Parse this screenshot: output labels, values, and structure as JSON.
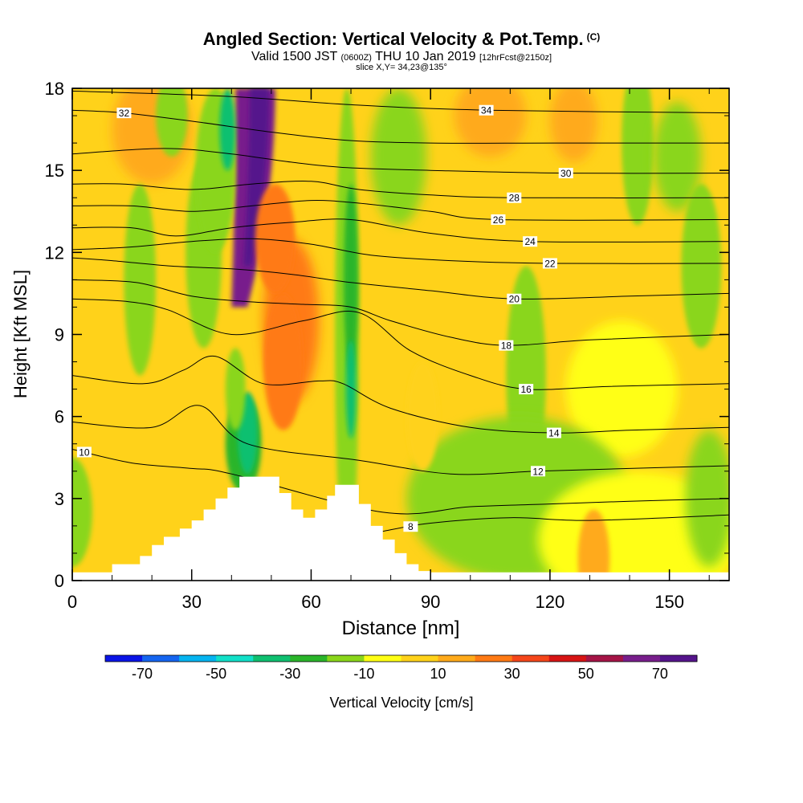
{
  "header": {
    "title": "Angled Section: Vertical Velocity & Pot.Temp.",
    "title_suffix": "(C)",
    "valid_prefix": "Valid 1500 JST",
    "valid_utc": "(0600Z)",
    "valid_date": "THU 10 Jan 2019",
    "forecast": "[12hrFcst@2150z]",
    "slice": "slice X,Y= 34,23@135°"
  },
  "chart_data": {
    "type": "heatmap",
    "xlabel": "Distance [nm]",
    "ylabel": "Height [Kft MSL]",
    "xlim": [
      0,
      165
    ],
    "ylim": [
      0,
      18
    ],
    "x_ticks": [
      0,
      30,
      60,
      90,
      120,
      150
    ],
    "y_ticks": [
      0,
      3,
      6,
      9,
      12,
      15,
      18
    ],
    "colorbar": {
      "label": "Vertical Velocity [cm/s]",
      "boundaries": [
        -80,
        -70,
        -60,
        -50,
        -40,
        -30,
        -20,
        -10,
        0,
        10,
        20,
        30,
        40,
        50,
        60,
        70,
        80
      ],
      "tick_labels": [
        "-70",
        "-50",
        "-30",
        "-10",
        "10",
        "30",
        "50",
        "70"
      ],
      "tick_values": [
        -70,
        -50,
        -30,
        -10,
        10,
        30,
        50,
        70
      ],
      "colors": [
        "#0a14e6",
        "#1565f0",
        "#05b4f0",
        "#12e0c8",
        "#0fc070",
        "#2ab52a",
        "#8ad61a",
        "#ffff14",
        "#ffd21a",
        "#ffaa1a",
        "#ff7a14",
        "#f5461a",
        "#d71414",
        "#a51446",
        "#781e8c",
        "#55148c"
      ]
    },
    "terrain_profile_kft": {
      "x": [
        0,
        10,
        17,
        20,
        23,
        27,
        30,
        33,
        36,
        39,
        42,
        45,
        47,
        50,
        52,
        55,
        58,
        61,
        64,
        66,
        67,
        69,
        72,
        75,
        78,
        81,
        84,
        87,
        90,
        165
      ],
      "top": [
        0.3,
        0.6,
        0.9,
        1.3,
        1.6,
        1.9,
        2.2,
        2.6,
        3.0,
        3.4,
        3.8,
        3.8,
        3.8,
        3.8,
        3.2,
        2.6,
        2.3,
        2.6,
        3.1,
        3.5,
        3.5,
        3.5,
        2.8,
        2.0,
        1.5,
        1.0,
        0.6,
        0.35,
        0.3,
        0.3
      ]
    },
    "velocity_features": [
      {
        "shape": "plume",
        "x": 46,
        "y_bottom": 10,
        "y_top": 18,
        "x_base_offset": -4,
        "half_width": 5,
        "value": 65
      },
      {
        "shape": "plume",
        "x": 47,
        "y_bottom": 11.5,
        "y_top": 18,
        "x_base_offset": -3,
        "half_width": 2.4,
        "value": 75
      },
      {
        "shape": "blob",
        "x": 55,
        "y": 9.5,
        "rx": 7,
        "ry": 3,
        "value": 25
      },
      {
        "shape": "blob",
        "x": 53,
        "y": 8,
        "rx": 5,
        "ry": 2.5,
        "value": 22
      },
      {
        "shape": "blob",
        "x": 51,
        "y": 12.5,
        "rx": 5,
        "ry": 2,
        "value": 20
      },
      {
        "shape": "blob",
        "x": 20,
        "y": 16.5,
        "rx": 10,
        "ry": 2,
        "value": 18
      },
      {
        "shape": "blob",
        "x": 105,
        "y": 17,
        "rx": 9,
        "ry": 1.5,
        "value": 18
      },
      {
        "shape": "blob",
        "x": 126,
        "y": 16.8,
        "rx": 6,
        "ry": 1.5,
        "value": 12
      },
      {
        "shape": "blob",
        "x": 33,
        "y": 12,
        "rx": 4.5,
        "ry": 3.5,
        "value": -15
      },
      {
        "shape": "blob",
        "x": 36,
        "y": 15,
        "rx": 5,
        "ry": 3,
        "value": -18
      },
      {
        "shape": "blob",
        "x": 39,
        "y": 16.5,
        "rx": 2,
        "ry": 1.5,
        "value": -32
      },
      {
        "shape": "blob",
        "x": 25,
        "y": 17,
        "rx": 4,
        "ry": 1.5,
        "value": -12
      },
      {
        "shape": "blob",
        "x": 43,
        "y": 5,
        "rx": 4.5,
        "ry": 1.8,
        "value": -22
      },
      {
        "shape": "blob",
        "x": 44,
        "y": 5.4,
        "rx": 2.5,
        "ry": 1.5,
        "value": -38
      },
      {
        "shape": "blob",
        "x": 41,
        "y": 7,
        "rx": 2.5,
        "ry": 1.5,
        "value": -15
      },
      {
        "shape": "blob",
        "x": 69,
        "y": 9,
        "rx": 3,
        "ry": 9,
        "value": -18
      },
      {
        "shape": "blob",
        "x": 70,
        "y": 11,
        "rx": 1.8,
        "ry": 3.5,
        "value": -30
      },
      {
        "shape": "blob",
        "x": 70,
        "y": 7,
        "rx": 1.3,
        "ry": 1.8,
        "value": -35
      },
      {
        "shape": "blob",
        "x": 82,
        "y": 15.5,
        "rx": 7,
        "ry": 2.5,
        "value": -15
      },
      {
        "shape": "blob",
        "x": 17,
        "y": 11,
        "rx": 4,
        "ry": 3.5,
        "value": -12
      },
      {
        "shape": "blob",
        "x": 0,
        "y": 2.5,
        "rx": 5,
        "ry": 2,
        "value": -12
      },
      {
        "shape": "blob",
        "x": 114,
        "y": 7.5,
        "rx": 5,
        "ry": 4,
        "value": -12
      },
      {
        "shape": "blob",
        "x": 138,
        "y": 7,
        "rx": 14,
        "ry": 2.5,
        "value": -10
      },
      {
        "shape": "blob",
        "x": 112,
        "y": 3,
        "rx": 28,
        "ry": 3,
        "value": -12
      },
      {
        "shape": "blob",
        "x": 142,
        "y": 1.5,
        "rx": 25,
        "ry": 2.5,
        "value": -10
      },
      {
        "shape": "blob",
        "x": 160,
        "y": 3,
        "rx": 6,
        "ry": 2.5,
        "value": -12
      },
      {
        "shape": "blob",
        "x": 142,
        "y": 16,
        "rx": 4,
        "ry": 3,
        "value": -12
      },
      {
        "shape": "blob",
        "x": 152,
        "y": 15.5,
        "rx": 6,
        "ry": 2,
        "value": -12
      },
      {
        "shape": "blob",
        "x": 158,
        "y": 11.5,
        "rx": 5,
        "ry": 3,
        "value": -12
      },
      {
        "shape": "blob",
        "x": 131,
        "y": 0.8,
        "rx": 4,
        "ry": 1.8,
        "value": 10
      },
      {
        "shape": "blob",
        "x": 88,
        "y": 6,
        "rx": 4,
        "ry": 2,
        "value": 8
      }
    ],
    "theta_contours": [
      {
        "label": "8",
        "label_x": 85,
        "points": [
          [
            78,
            1.8
          ],
          [
            90,
            2.1
          ],
          [
            110,
            2.3
          ],
          [
            130,
            2.2
          ],
          [
            165,
            2.4
          ]
        ]
      },
      {
        "label": "10",
        "label_x": 3,
        "points": [
          [
            0,
            4.8
          ],
          [
            15,
            4.3
          ],
          [
            30,
            4.1
          ],
          [
            40,
            3.9
          ],
          [
            78,
            2.5
          ],
          [
            100,
            2.7
          ],
          [
            120,
            2.8
          ],
          [
            140,
            2.9
          ],
          [
            165,
            3.0
          ]
        ]
      },
      {
        "label": "12",
        "label_x": 117,
        "points": [
          [
            0,
            5.8
          ],
          [
            20,
            5.6
          ],
          [
            32,
            6.4
          ],
          [
            44,
            5.0
          ],
          [
            72,
            4.4
          ],
          [
            95,
            3.9
          ],
          [
            117,
            4.0
          ],
          [
            140,
            4.1
          ],
          [
            165,
            4.2
          ]
        ]
      },
      {
        "label": "14",
        "label_x": 121,
        "points": [
          [
            0,
            7.5
          ],
          [
            18,
            7.2
          ],
          [
            28,
            7.7
          ],
          [
            36,
            8.2
          ],
          [
            48,
            7.2
          ],
          [
            62,
            7.3
          ],
          [
            68,
            7.2
          ],
          [
            80,
            6.3
          ],
          [
            100,
            5.6
          ],
          [
            121,
            5.4
          ],
          [
            140,
            5.5
          ],
          [
            165,
            5.6
          ]
        ]
      },
      {
        "label": "16",
        "label_x": 114,
        "points": [
          [
            0,
            10.3
          ],
          [
            14,
            10.2
          ],
          [
            24,
            9.9
          ],
          [
            40,
            9.0
          ],
          [
            58,
            9.5
          ],
          [
            72,
            9.8
          ],
          [
            85,
            8.4
          ],
          [
            100,
            7.5
          ],
          [
            114,
            7.0
          ],
          [
            135,
            7.1
          ],
          [
            165,
            7.2
          ]
        ]
      },
      {
        "label": "18",
        "label_x": 109,
        "points": [
          [
            0,
            11.0
          ],
          [
            16,
            10.9
          ],
          [
            30,
            10.4
          ],
          [
            44,
            10.2
          ],
          [
            58,
            10.1
          ],
          [
            70,
            10.0
          ],
          [
            80,
            9.5
          ],
          [
            95,
            8.9
          ],
          [
            109,
            8.6
          ],
          [
            130,
            8.8
          ],
          [
            165,
            9.0
          ]
        ]
      },
      {
        "label": "20",
        "label_x": 111,
        "points": [
          [
            0,
            11.8
          ],
          [
            10,
            11.7
          ],
          [
            25,
            11.5
          ],
          [
            40,
            11.4
          ],
          [
            55,
            11.2
          ],
          [
            70,
            10.9
          ],
          [
            90,
            10.6
          ],
          [
            111,
            10.3
          ],
          [
            140,
            10.4
          ],
          [
            165,
            10.5
          ]
        ]
      },
      {
        "label": "22",
        "label_x": 120,
        "points": [
          [
            0,
            12.1
          ],
          [
            15,
            12.2
          ],
          [
            30,
            12.4
          ],
          [
            45,
            12.5
          ],
          [
            60,
            12.3
          ],
          [
            75,
            11.9
          ],
          [
            95,
            11.7
          ],
          [
            120,
            11.6
          ],
          [
            165,
            11.6
          ]
        ]
      },
      {
        "label": "24",
        "label_x": 115,
        "points": [
          [
            0,
            12.9
          ],
          [
            15,
            12.9
          ],
          [
            26,
            12.6
          ],
          [
            40,
            12.9
          ],
          [
            55,
            13.1
          ],
          [
            70,
            13.2
          ],
          [
            90,
            12.7
          ],
          [
            115,
            12.4
          ],
          [
            165,
            12.4
          ]
        ]
      },
      {
        "label": "26",
        "label_x": 107,
        "points": [
          [
            0,
            13.7
          ],
          [
            15,
            13.7
          ],
          [
            30,
            13.5
          ],
          [
            45,
            13.7
          ],
          [
            60,
            13.9
          ],
          [
            72,
            13.8
          ],
          [
            90,
            13.5
          ],
          [
            107,
            13.2
          ],
          [
            165,
            13.2
          ]
        ]
      },
      {
        "label": "28",
        "label_x": 111,
        "points": [
          [
            0,
            14.5
          ],
          [
            13,
            14.5
          ],
          [
            30,
            14.3
          ],
          [
            45,
            14.5
          ],
          [
            60,
            14.6
          ],
          [
            72,
            14.3
          ],
          [
            90,
            14.1
          ],
          [
            111,
            14.0
          ],
          [
            165,
            14.0
          ]
        ]
      },
      {
        "label": "30",
        "label_x": 124,
        "points": [
          [
            0,
            15.6
          ],
          [
            23,
            15.8
          ],
          [
            40,
            15.6
          ],
          [
            55,
            15.3
          ],
          [
            69,
            15.1
          ],
          [
            90,
            15.0
          ],
          [
            124,
            14.9
          ],
          [
            165,
            14.9
          ]
        ]
      },
      {
        "label": "32",
        "label_x": 13,
        "points": [
          [
            0,
            17.2
          ],
          [
            13,
            17.1
          ],
          [
            30,
            16.8
          ],
          [
            50,
            16.4
          ],
          [
            69,
            16.1
          ],
          [
            90,
            16.0
          ],
          [
            121,
            16.0
          ],
          [
            165,
            16.0
          ]
        ]
      },
      {
        "label": "34",
        "label_x": 104,
        "points": [
          [
            0,
            17.9
          ],
          [
            40,
            17.7
          ],
          [
            70,
            17.4
          ],
          [
            104,
            17.2
          ],
          [
            165,
            17.1
          ]
        ]
      }
    ]
  }
}
